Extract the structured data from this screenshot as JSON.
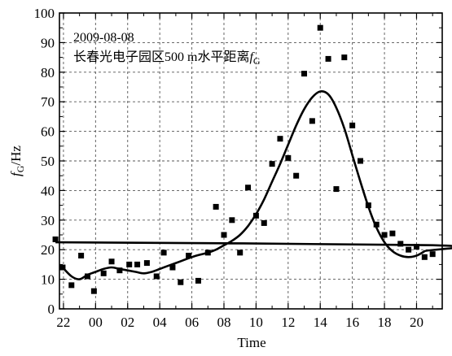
{
  "chart_data": {
    "type": "scatter",
    "xlabel": "Time",
    "ylabel_main": "f",
    "ylabel_sub": "G",
    "ylabel_unit": "/Hz",
    "annotation_date": "2009-08-08",
    "annotation_text": "长春光电子园区500 m水平距离",
    "annotation_f": "f",
    "annotation_f_sub": "G",
    "x_hours_since_22": [
      22,
      22,
      22,
      22,
      22
    ],
    "xlim_hours": [
      -0.25,
      23.6
    ],
    "ylim": [
      0,
      100
    ],
    "grid": true,
    "x_ticks": [
      {
        "label": "22",
        "hour": 22
      },
      {
        "label": "00",
        "hour": 0
      },
      {
        "label": "02",
        "hour": 2
      },
      {
        "label": "04",
        "hour": 4
      },
      {
        "label": "06",
        "hour": 6
      },
      {
        "label": "08",
        "hour": 8
      },
      {
        "label": "10",
        "hour": 10
      },
      {
        "label": "12",
        "hour": 12
      },
      {
        "label": "14",
        "hour": 14
      },
      {
        "label": "16",
        "hour": 16
      },
      {
        "label": "18",
        "hour": 18
      },
      {
        "label": "20",
        "hour": 20
      }
    ],
    "y_ticks": [
      "0",
      "10",
      "20",
      "30",
      "40",
      "50",
      "60",
      "70",
      "80",
      "90",
      "100"
    ],
    "points": [
      {
        "hour": 21.95,
        "y": 14
      },
      {
        "hour": 22.5,
        "y": 8
      },
      {
        "hour": 23.1,
        "y": 18
      },
      {
        "hour": 23.5,
        "y": 11
      },
      {
        "hour": 23.9,
        "y": 6
      },
      {
        "hour": 0.5,
        "y": 12
      },
      {
        "hour": 1.0,
        "y": 16
      },
      {
        "hour": 1.5,
        "y": 13
      },
      {
        "hour": 2.1,
        "y": 15
      },
      {
        "hour": 2.6,
        "y": 15
      },
      {
        "hour": 3.2,
        "y": 15.5
      },
      {
        "hour": 3.8,
        "y": 11
      },
      {
        "hour": 4.25,
        "y": 19
      },
      {
        "hour": 4.8,
        "y": 14
      },
      {
        "hour": 5.3,
        "y": 9
      },
      {
        "hour": 5.8,
        "y": 18
      },
      {
        "hour": 6.4,
        "y": 9.5
      },
      {
        "hour": 7.0,
        "y": 19
      },
      {
        "hour": 7.5,
        "y": 34.5
      },
      {
        "hour": 8.0,
        "y": 25
      },
      {
        "hour": 8.5,
        "y": 30
      },
      {
        "hour": 9.0,
        "y": 19
      },
      {
        "hour": 9.5,
        "y": 41
      },
      {
        "hour": 10.0,
        "y": 31.5
      },
      {
        "hour": 10.5,
        "y": 29
      },
      {
        "hour": 11.0,
        "y": 49
      },
      {
        "hour": 11.5,
        "y": 57.5
      },
      {
        "hour": 12.0,
        "y": 51
      },
      {
        "hour": 12.5,
        "y": 45
      },
      {
        "hour": 13.0,
        "y": 79.5
      },
      {
        "hour": 13.5,
        "y": 63.5
      },
      {
        "hour": 14.0,
        "y": 95
      },
      {
        "hour": 14.5,
        "y": 84.5
      },
      {
        "hour": 15.0,
        "y": 40.5
      },
      {
        "hour": 15.5,
        "y": 85
      },
      {
        "hour": 16.0,
        "y": 62
      },
      {
        "hour": 16.5,
        "y": 50
      },
      {
        "hour": 17.0,
        "y": 35
      },
      {
        "hour": 17.5,
        "y": 28.5
      },
      {
        "hour": 18.0,
        "y": 25
      },
      {
        "hour": 18.5,
        "y": 25.5
      },
      {
        "hour": 19.0,
        "y": 22
      },
      {
        "hour": 19.5,
        "y": 20
      },
      {
        "hour": 20.0,
        "y": 21
      },
      {
        "hour": 20.5,
        "y": 17.5
      },
      {
        "hour": 21.0,
        "y": 18.5
      },
      {
        "hour": 21.5,
        "y": 23.5
      }
    ],
    "fit_curve": [
      {
        "hour": 21.95,
        "y": 14
      },
      {
        "hour": 22.5,
        "y": 11
      },
      {
        "hour": 23.0,
        "y": 10
      },
      {
        "hour": 23.5,
        "y": 11.5
      },
      {
        "hour": 0.0,
        "y": 12.5
      },
      {
        "hour": 0.5,
        "y": 13.5
      },
      {
        "hour": 1.0,
        "y": 14
      },
      {
        "hour": 1.5,
        "y": 13.5
      },
      {
        "hour": 2.0,
        "y": 13
      },
      {
        "hour": 2.5,
        "y": 12.5
      },
      {
        "hour": 3.0,
        "y": 12
      },
      {
        "hour": 3.5,
        "y": 12.5
      },
      {
        "hour": 4.0,
        "y": 13.5
      },
      {
        "hour": 4.5,
        "y": 14.5
      },
      {
        "hour": 5.0,
        "y": 15.5
      },
      {
        "hour": 5.5,
        "y": 16.5
      },
      {
        "hour": 6.0,
        "y": 17.5
      },
      {
        "hour": 6.5,
        "y": 18.3
      },
      {
        "hour": 7.0,
        "y": 19
      },
      {
        "hour": 7.5,
        "y": 20
      },
      {
        "hour": 8.0,
        "y": 21.5
      },
      {
        "hour": 8.5,
        "y": 23
      },
      {
        "hour": 9.0,
        "y": 25
      },
      {
        "hour": 9.5,
        "y": 28
      },
      {
        "hour": 10.0,
        "y": 32
      },
      {
        "hour": 10.5,
        "y": 37
      },
      {
        "hour": 11.0,
        "y": 43
      },
      {
        "hour": 11.5,
        "y": 49
      },
      {
        "hour": 12.0,
        "y": 55.5
      },
      {
        "hour": 12.5,
        "y": 62
      },
      {
        "hour": 13.0,
        "y": 67.5
      },
      {
        "hour": 13.5,
        "y": 71.5
      },
      {
        "hour": 14.0,
        "y": 73.5
      },
      {
        "hour": 14.5,
        "y": 72.5
      },
      {
        "hour": 15.0,
        "y": 68
      },
      {
        "hour": 15.5,
        "y": 61
      },
      {
        "hour": 16.0,
        "y": 52
      },
      {
        "hour": 16.5,
        "y": 43
      },
      {
        "hour": 17.0,
        "y": 34.5
      },
      {
        "hour": 17.5,
        "y": 27.5
      },
      {
        "hour": 18.0,
        "y": 22.5
      },
      {
        "hour": 18.5,
        "y": 19.5
      },
      {
        "hour": 19.0,
        "y": 18
      },
      {
        "hour": 19.5,
        "y": 17.5
      },
      {
        "hour": 20.0,
        "y": 18
      },
      {
        "hour": 20.5,
        "y": 19.5
      },
      {
        "hour": 21.0,
        "y": 21.5
      },
      {
        "hour": 21.5,
        "y": 22.5
      }
    ]
  }
}
